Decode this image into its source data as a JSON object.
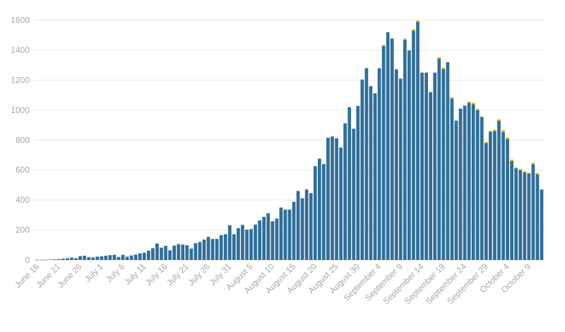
{
  "chart_data": {
    "type": "bar",
    "title": "",
    "xlabel": "",
    "ylabel": "",
    "ylim": [
      0,
      1650
    ],
    "y_ticks": [
      0,
      200,
      400,
      600,
      800,
      1000,
      1200,
      1400,
      1600
    ],
    "grid": "horizontal",
    "x_tick_labels": [
      "June 16",
      "June 21",
      "June 26",
      "July 1",
      "July 6",
      "July 11",
      "July 16",
      "July 21",
      "July 26",
      "July 31",
      "August 5",
      "August 10",
      "August 15",
      "August 20",
      "August 25",
      "August 30",
      "September 4",
      "September 9",
      "September 14",
      "September 19",
      "September 24",
      "September 29",
      "October 4",
      "October 9"
    ],
    "x_tick_every": 5,
    "colors": {
      "primary": "#2f6e99",
      "secondary": "#f2c300",
      "grid": "#e6e6e6",
      "tick_text": "#a6a6a6"
    },
    "series": [
      {
        "values": [
          1,
          1,
          2,
          3,
          4,
          6,
          9,
          12,
          16,
          12,
          26,
          28,
          18,
          17,
          22,
          24,
          28,
          32,
          34,
          20,
          34,
          22,
          30,
          36,
          44,
          48,
          62,
          78,
          110,
          82,
          94,
          64,
          96,
          106,
          102,
          98,
          76,
          112,
          120,
          136,
          154,
          140,
          140,
          166,
          172,
          232,
          172,
          212,
          234,
          202,
          206,
          236,
          264,
          288,
          312,
          258,
          276,
          350,
          336,
          336,
          388,
          460,
          412,
          470,
          446,
          626,
          676,
          640,
          816,
          824,
          812,
          750,
          912,
          1020,
          876,
          1028,
          1204,
          1280,
          1160,
          1112,
          1280,
          1428,
          1520,
          1478,
          1272,
          1210,
          1470,
          1398,
          1530,
          1590,
          1250,
          1250,
          1120,
          1250,
          1344,
          1275,
          1320,
          1078,
          930,
          1010,
          1030,
          1050,
          1040,
          1000,
          955,
          780,
          855,
          860,
          930,
          855,
          808,
          660,
          612,
          600,
          585,
          578,
          640,
          572,
          470
        ]
      },
      {
        "values": [
          0,
          0,
          0,
          0,
          0,
          0,
          0,
          0,
          0,
          0,
          0,
          0,
          0,
          0,
          0,
          0,
          0,
          0,
          0,
          0,
          0,
          0,
          0,
          0,
          0,
          0,
          0,
          0,
          0,
          0,
          0,
          0,
          0,
          0,
          0,
          0,
          0,
          0,
          0,
          0,
          0,
          0,
          0,
          0,
          0,
          0,
          0,
          0,
          0,
          0,
          0,
          0,
          0,
          0,
          0,
          0,
          0,
          0,
          0,
          0,
          0,
          0,
          0,
          4,
          0,
          0,
          0,
          0,
          0,
          0,
          0,
          0,
          0,
          0,
          0,
          0,
          0,
          0,
          0,
          0,
          0,
          8,
          0,
          0,
          0,
          0,
          8,
          0,
          10,
          10,
          0,
          0,
          0,
          0,
          10,
          8,
          0,
          8,
          0,
          0,
          0,
          8,
          10,
          10,
          0,
          8,
          8,
          10,
          10,
          12,
          10,
          10,
          6,
          6,
          6,
          4,
          10,
          10,
          0
        ]
      }
    ]
  }
}
